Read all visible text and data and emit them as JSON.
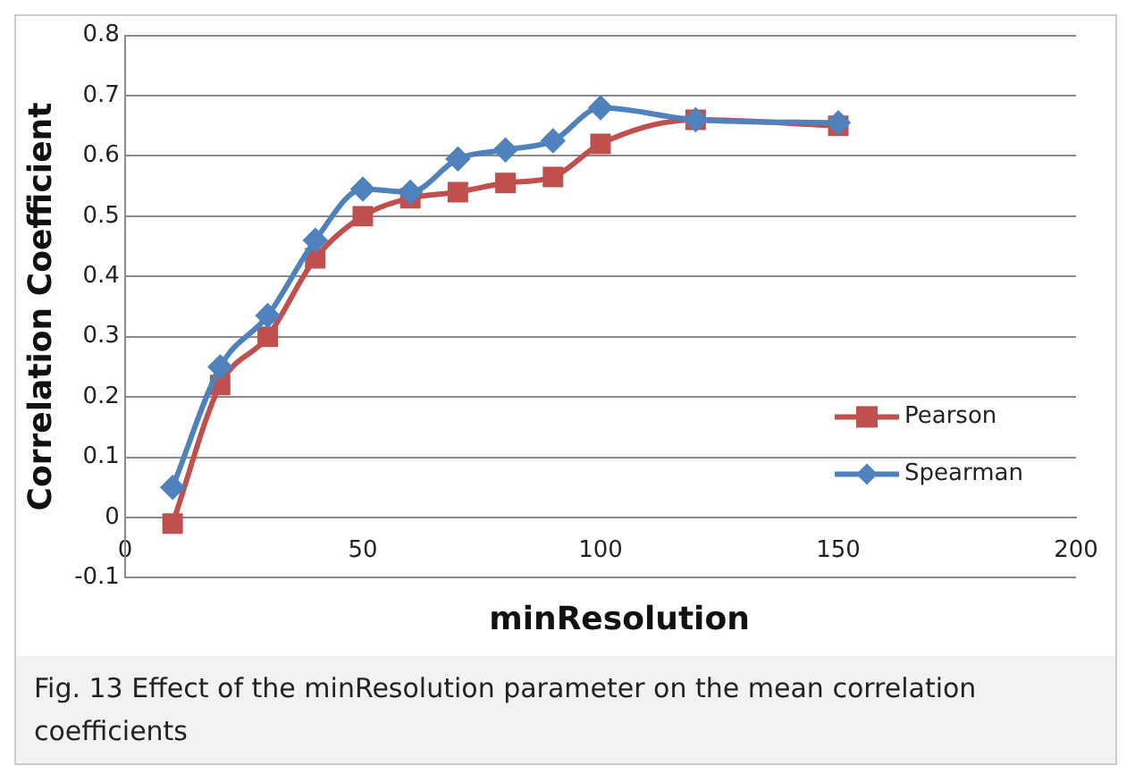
{
  "chart_data": {
    "type": "line",
    "xlabel": "minResolution",
    "ylabel": "Correlation Coefficient",
    "x": [
      10,
      20,
      30,
      40,
      50,
      60,
      70,
      80,
      90,
      100,
      120,
      150
    ],
    "series": [
      {
        "name": "Pearson",
        "color": "#c0504d",
        "marker": "square",
        "values": [
          -0.01,
          0.22,
          0.3,
          0.43,
          0.5,
          0.53,
          0.54,
          0.555,
          0.565,
          0.62,
          0.66,
          0.65
        ]
      },
      {
        "name": "Spearman",
        "color": "#4f81bd",
        "marker": "diamond",
        "values": [
          0.05,
          0.25,
          0.335,
          0.46,
          0.545,
          0.54,
          0.595,
          0.61,
          0.625,
          0.68,
          0.66,
          0.655
        ]
      }
    ],
    "xlim": [
      0,
      200
    ],
    "xticks": [
      0,
      50,
      100,
      150,
      200
    ],
    "ylim": [
      -0.1,
      0.8
    ],
    "yticks": [
      -0.1,
      0,
      0.1,
      0.2,
      0.3,
      0.4,
      0.5,
      0.6,
      0.7,
      0.8
    ],
    "grid": "y",
    "legend": "bottom right",
    "annotations": [
      "Fig. 13 Effect of the minResolution parameter on the mean correlation coefficients"
    ]
  }
}
